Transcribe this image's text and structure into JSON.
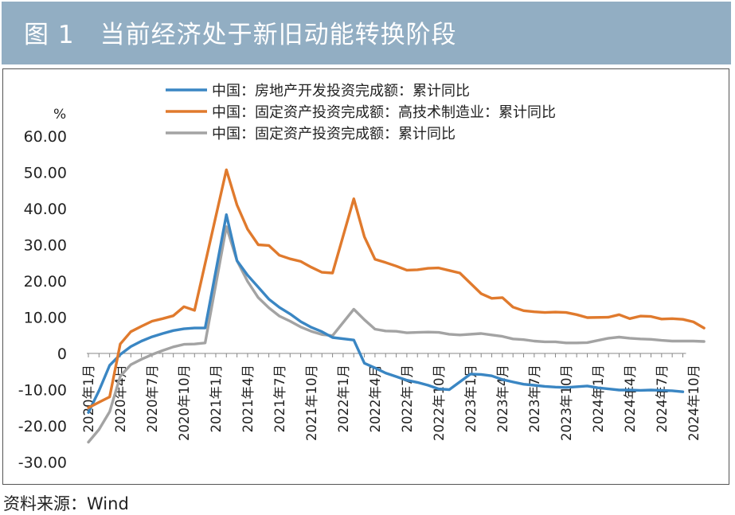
{
  "figure": {
    "title": "图 1　当前经济处于新旧动能转换阶段",
    "source": "资料来源：Wind"
  },
  "colors": {
    "header_bg": "#92aec3",
    "series": [
      "#3a86c3",
      "#e07a2d",
      "#a3a3a3"
    ]
  },
  "chart_data": {
    "type": "line",
    "ylabel": "%",
    "ylim": [
      -30,
      60
    ],
    "yticks": [
      "60.00",
      "50.00",
      "40.00",
      "30.00",
      "20.00",
      "10.00",
      "0",
      "-10.00",
      "-20.00",
      "-30.00"
    ],
    "ytick_values": [
      60,
      50,
      40,
      30,
      20,
      10,
      0,
      -10,
      -20,
      -30
    ],
    "x_start": "2020-01",
    "x_tick_labels": [
      "2020年1月",
      "2020年4月",
      "2020年7月",
      "2020年10月",
      "2021年1月",
      "2021年4月",
      "2021年7月",
      "2021年10月",
      "2022年1月",
      "2022年4月",
      "2022年7月",
      "2022年10月",
      "2023年1月",
      "2023年4月",
      "2023年7月",
      "2023年10月",
      "2024年1月",
      "2024年4月",
      "2024年7月",
      "2024年10月"
    ],
    "legend_position": "top",
    "grid": false,
    "series": [
      {
        "name": "中国：房地产开发投资完成额：累计同比",
        "values": [
          -16.3,
          -10.3,
          -3.3,
          -0.3,
          1.9,
          3.4,
          4.6,
          5.5,
          6.3,
          6.8,
          7.0,
          7.0,
          null,
          38.3,
          25.6,
          21.6,
          18.3,
          15.0,
          12.7,
          10.9,
          8.8,
          7.2,
          6.0,
          4.4,
          null,
          3.7,
          -2.7,
          -4.0,
          -5.4,
          -6.4,
          -7.4,
          -8.0,
          -8.8,
          -9.8,
          -10.0,
          null,
          -5.7,
          -5.8,
          -6.2,
          -7.2,
          -7.9,
          -8.5,
          -8.8,
          -9.1,
          -9.3,
          -9.4,
          null,
          -9.0,
          -9.5,
          -9.8,
          -10.1,
          -10.1,
          -10.2,
          -10.1,
          -10.2,
          -10.3,
          -10.6
        ]
      },
      {
        "name": "中国：固定资产投资完成额：高技术制造业：累计同比",
        "values": [
          -15.0,
          -13.5,
          -12.0,
          2.6,
          6.0,
          7.5,
          8.9,
          9.6,
          10.4,
          12.9,
          11.9,
          null,
          null,
          50.7,
          41.0,
          34.3,
          30.0,
          29.8,
          27.1,
          26.1,
          25.4,
          23.8,
          22.4,
          22.2,
          null,
          42.7,
          32.2,
          26.0,
          25.1,
          24.1,
          23.0,
          23.1,
          23.5,
          23.6,
          22.9,
          22.2,
          null,
          16.5,
          15.2,
          15.4,
          12.8,
          11.8,
          11.5,
          11.3,
          11.4,
          11.3,
          10.7,
          9.9,
          null,
          10.0,
          10.7,
          9.6,
          10.3,
          10.2,
          9.5,
          9.6,
          9.4,
          8.7,
          7.0
        ]
      },
      {
        "name": "中国：固定资产投资完成额：累计同比",
        "values": [
          -24.5,
          -21.0,
          -16.1,
          -6.3,
          -3.1,
          -1.6,
          -0.3,
          0.8,
          1.8,
          2.5,
          2.6,
          2.9,
          null,
          35.0,
          25.6,
          19.9,
          15.4,
          12.6,
          10.3,
          8.9,
          7.3,
          6.1,
          5.2,
          4.9,
          null,
          12.2,
          9.3,
          6.7,
          6.2,
          6.1,
          5.7,
          5.8,
          5.9,
          5.8,
          5.3,
          5.1,
          null,
          5.5,
          5.1,
          4.7,
          4.0,
          3.8,
          3.4,
          3.2,
          3.2,
          2.9,
          2.9,
          3.0,
          null,
          4.2,
          4.5,
          4.2,
          4.0,
          3.9,
          3.6,
          3.4,
          3.4,
          3.4,
          3.3
        ]
      }
    ]
  }
}
